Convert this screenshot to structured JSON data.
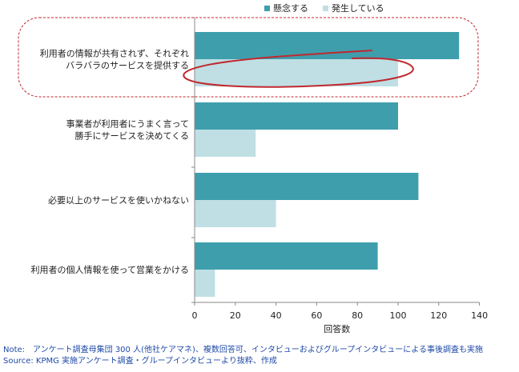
{
  "chart_data": {
    "type": "bar",
    "orientation": "horizontal",
    "categories": [
      [
        "利用者の情報が共有されず、それぞれ",
        "バラバラのサービスを提供する"
      ],
      [
        "事業者が利用者にうまく言って",
        "勝手にサービスを決めてくる"
      ],
      [
        "必要以上のサービスを使いかねない"
      ],
      [
        "利用者の個人情報を使って営業をかける"
      ]
    ],
    "series": [
      {
        "name": "懸念する",
        "color": "#3f9eac",
        "values": [
          130,
          100,
          110,
          90
        ]
      },
      {
        "name": "発生している",
        "color": "#bfdfe4",
        "values": [
          100,
          30,
          40,
          10
        ]
      }
    ],
    "xlabel": "回答数",
    "xlim": [
      0,
      140
    ],
    "xticks": [
      0,
      20,
      40,
      60,
      80,
      100,
      120,
      140
    ],
    "legend_position": "top",
    "grid": false,
    "annotation_color": "#c0282e"
  },
  "notes": {
    "note": "Note:　アンケート調査母集団 300 人(他社ケアマネ)、複数回答可、インタビューおよびグループインタビューによる事後調査も実施",
    "source": "Source: KPMG 実施アンケート調査・グループインタビューより抜粋、作成"
  }
}
